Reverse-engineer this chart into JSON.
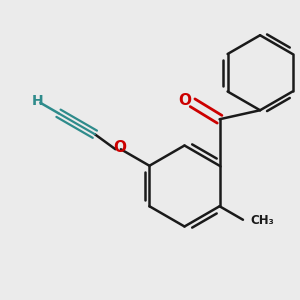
{
  "background_color": "#ebebeb",
  "bond_color": "#1a1a1a",
  "o_color": "#cc0000",
  "teal_color": "#2e8b8b",
  "line_width": 1.8,
  "figsize": [
    3.0,
    3.0
  ],
  "dpi": 100,
  "xlim": [
    0.0,
    1.0
  ],
  "ylim": [
    0.0,
    1.0
  ]
}
